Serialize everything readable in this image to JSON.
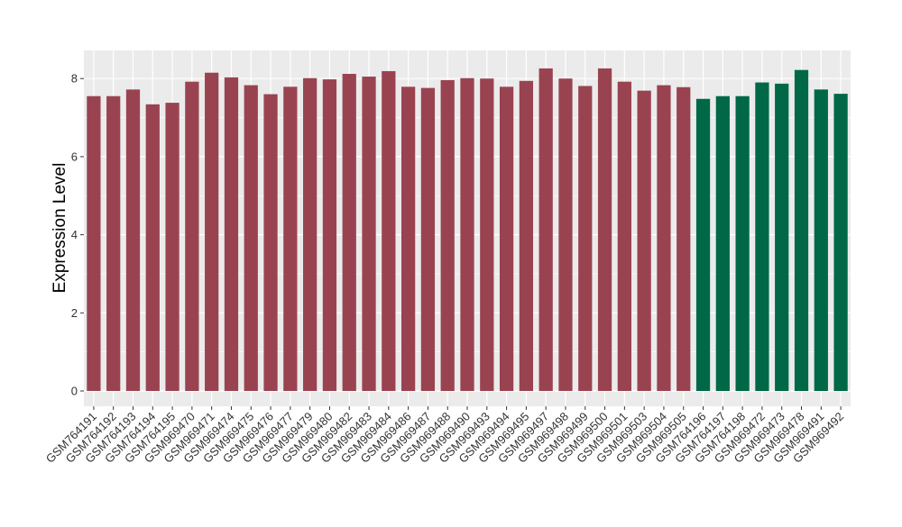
{
  "chart_data": {
    "type": "bar",
    "xlabel": "",
    "ylabel": "Expression Level",
    "ylim": [
      0,
      8.72
    ],
    "yticks": [
      0,
      2,
      4,
      6,
      8
    ],
    "grid": true,
    "legend": "none",
    "colors": {
      "group_a": "#9a4350",
      "group_b": "#006847",
      "panel_bg": "#ebebeb",
      "gridline": "#ffffff",
      "axis_text": "#333333"
    },
    "categories": [
      "GSM764191",
      "GSM764192",
      "GSM764193",
      "GSM764194",
      "GSM764195",
      "GSM969470",
      "GSM969471",
      "GSM969474",
      "GSM969475",
      "GSM969476",
      "GSM969477",
      "GSM969479",
      "GSM969480",
      "GSM969482",
      "GSM969483",
      "GSM969484",
      "GSM969486",
      "GSM969487",
      "GSM969488",
      "GSM969490",
      "GSM969493",
      "GSM969494",
      "GSM969495",
      "GSM969497",
      "GSM969498",
      "GSM969499",
      "GSM969500",
      "GSM969501",
      "GSM969503",
      "GSM969504",
      "GSM969505",
      "GSM764196",
      "GSM764197",
      "GSM764198",
      "GSM969472",
      "GSM969473",
      "GSM969478",
      "GSM969491",
      "GSM969492"
    ],
    "values": [
      7.55,
      7.55,
      7.72,
      7.34,
      7.38,
      7.92,
      8.15,
      8.03,
      7.83,
      7.6,
      7.79,
      8.01,
      7.98,
      8.12,
      8.05,
      8.19,
      7.79,
      7.76,
      7.96,
      8.01,
      8.0,
      7.79,
      7.94,
      8.26,
      8.0,
      7.81,
      8.26,
      7.92,
      7.69,
      7.83,
      7.78,
      7.48,
      7.55,
      7.55,
      7.9,
      7.87,
      8.22,
      7.72,
      7.61
    ],
    "groups": [
      "a",
      "a",
      "a",
      "a",
      "a",
      "a",
      "a",
      "a",
      "a",
      "a",
      "a",
      "a",
      "a",
      "a",
      "a",
      "a",
      "a",
      "a",
      "a",
      "a",
      "a",
      "a",
      "a",
      "a",
      "a",
      "a",
      "a",
      "a",
      "a",
      "a",
      "a",
      "b",
      "b",
      "b",
      "b",
      "b",
      "b",
      "b",
      "b"
    ]
  }
}
